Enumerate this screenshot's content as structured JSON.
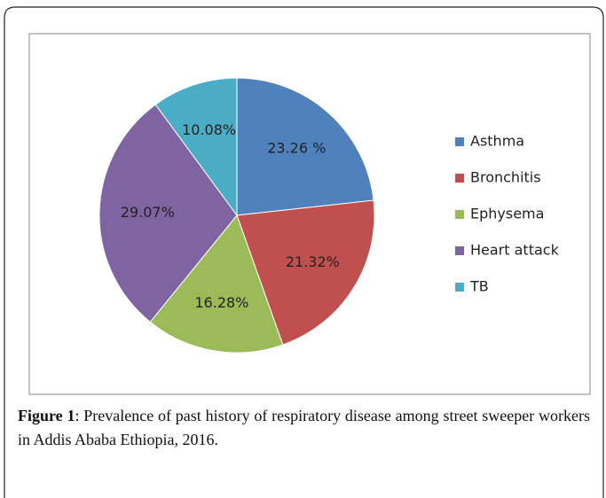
{
  "chart_data": {
    "type": "pie",
    "categories": [
      "Asthma",
      "Bronchitis",
      "Ephysema",
      "Heart attack",
      "TB"
    ],
    "values": [
      23.26,
      21.32,
      16.28,
      29.07,
      10.08
    ],
    "value_labels": [
      "23.26 %",
      "21.32%",
      "16.28%",
      "29.07%",
      "10.08%"
    ],
    "colors": [
      "#4f81bd",
      "#c0504d",
      "#9bbb59",
      "#8064a2",
      "#4bacc6"
    ],
    "legend": "right",
    "caption_label": "Figure 1",
    "caption": ": Prevalence of past history of respiratory disease among street sweeper workers in Addis Ababa Ethiopia, 2016."
  }
}
